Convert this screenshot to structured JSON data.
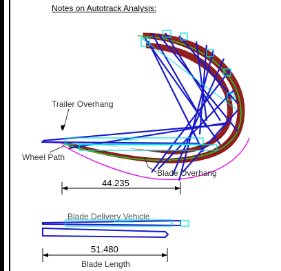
{
  "title": "Notes on Autotrack Analysis:",
  "labels": {
    "trailer_overhang": "Trailer Overhang",
    "wheel_path": "Wheel Path",
    "blade_overhang": "Blade Overhang",
    "delivery_vehicle": "Blade Delivery Vehicle",
    "blade_length": "Blade Length"
  },
  "dimensions": {
    "swept": "44.235",
    "blade": "51.480"
  },
  "colors": {
    "swept_fill": "#8b1a1a",
    "wheel_path": "#22cc22",
    "blade_overhang": "#e020e0",
    "vehicle": "#1a1acc",
    "vehicle_outline": "#00e0e0"
  }
}
